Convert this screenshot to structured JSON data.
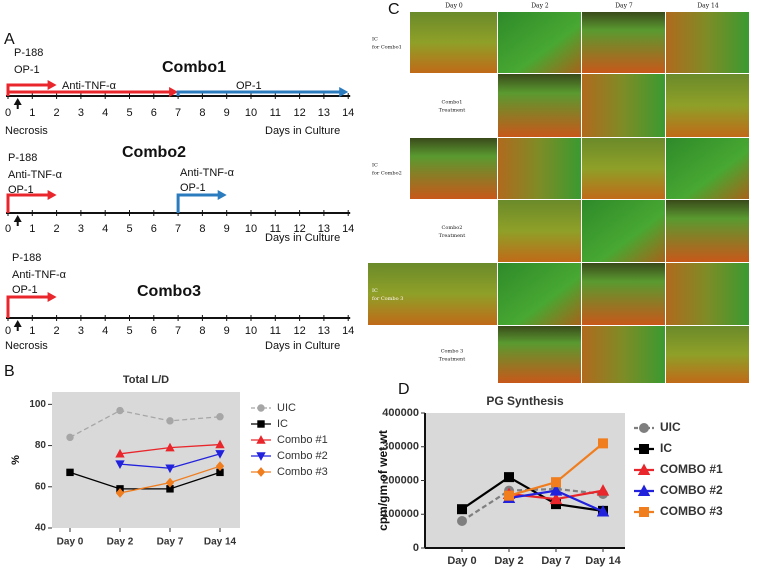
{
  "panel_a": {
    "label": "A",
    "timelines": [
      {
        "title": "Combo1",
        "annotations": [
          "P-188",
          "OP-1",
          "Anti-TNF-α",
          "OP-1"
        ],
        "day_ticks": [
          0,
          1,
          2,
          3,
          4,
          5,
          6,
          7,
          8,
          9,
          10,
          11,
          12,
          13,
          14
        ],
        "footer_left": "Necrosis",
        "footer_right": "Days in Culture",
        "arrows": [
          {
            "from": 0,
            "to": 2,
            "color": "#e8262b"
          },
          {
            "from": 0,
            "to": 7,
            "color": "#e8262b"
          },
          {
            "from": 7,
            "to": 14,
            "color": "#2b7bbf"
          }
        ]
      },
      {
        "title": "Combo2",
        "annotations": [
          "P-188",
          "Anti-TNF-α",
          "OP-1",
          "Anti-TNF-α",
          "OP-1"
        ],
        "day_ticks": [
          0,
          1,
          2,
          3,
          4,
          5,
          6,
          7,
          8,
          9,
          10,
          11,
          12,
          13,
          14
        ],
        "footer_right": "Days in Culture",
        "arrows": [
          {
            "from": 0,
            "to": 2,
            "color": "#e8262b"
          },
          {
            "from": 7,
            "to": 9,
            "color": "#2b7bbf"
          }
        ]
      },
      {
        "title": "Combo3",
        "annotations": [
          "P-188",
          "Anti-TNF-α",
          "OP-1"
        ],
        "day_ticks": [
          0,
          1,
          2,
          3,
          4,
          5,
          6,
          7,
          8,
          9,
          10,
          11,
          12,
          13,
          14
        ],
        "footer_left": "Necrosis",
        "footer_right": "Days in Culture",
        "arrows": [
          {
            "from": 0,
            "to": 2,
            "color": "#e8262b"
          }
        ]
      }
    ]
  },
  "panel_c": {
    "label": "C",
    "columns": [
      "Day 0",
      "Day 2",
      "Day 7",
      "Day 14"
    ],
    "rows": [
      [
        "IC",
        "for Combo1"
      ],
      [
        "Combo1",
        "Treatment"
      ],
      [
        "IC",
        "for Combo2"
      ],
      [
        "Combo2",
        "Treatment"
      ],
      [
        "IC",
        "for Combo 3"
      ],
      [
        "Combo 3",
        "Treatment"
      ]
    ]
  },
  "chart_data": [
    {
      "type": "line",
      "panel": "B",
      "title": "Total  L/D",
      "ylabel": "%",
      "categories": [
        "Day 0",
        "Day 2",
        "Day 7",
        "Day 14"
      ],
      "series": [
        {
          "name": "UIC",
          "color": "#a6a6a6",
          "marker": "circle",
          "dashed": true,
          "values": [
            84,
            97,
            92,
            94
          ]
        },
        {
          "name": "IC",
          "color": "#000000",
          "marker": "square",
          "dashed": false,
          "values": [
            67,
            59,
            59,
            67
          ]
        },
        {
          "name": "Combo #1",
          "color": "#e8262b",
          "marker": "triangle-up",
          "dashed": false,
          "values": [
            null,
            76,
            79,
            80.5
          ]
        },
        {
          "name": "Combo #2",
          "color": "#2222dd",
          "marker": "triangle-down",
          "dashed": false,
          "values": [
            null,
            71,
            69,
            76
          ]
        },
        {
          "name": "Combo #3",
          "color": "#f07d1e",
          "marker": "diamond",
          "dashed": false,
          "values": [
            null,
            57,
            62,
            70
          ]
        }
      ],
      "ylim": [
        40,
        106
      ],
      "yticks": [
        40,
        60,
        80,
        100
      ],
      "grid": false
    },
    {
      "type": "line",
      "panel": "D",
      "title": "PG Synthesis",
      "ylabel": "cpm/gm of wet wt",
      "categories": [
        "Day 0",
        "Day 2",
        "Day 7",
        "Day 14"
      ],
      "series": [
        {
          "name": "UIC",
          "color": "#7f7f7f",
          "marker": "circle",
          "dashed": true,
          "values": [
            80000,
            170000,
            175000,
            160000
          ]
        },
        {
          "name": "IC",
          "color": "#000000",
          "marker": "square",
          "dashed": false,
          "values": [
            115000,
            210000,
            130000,
            110000
          ]
        },
        {
          "name": "COMBO #1",
          "color": "#e8262b",
          "marker": "triangle-up",
          "dashed": false,
          "values": [
            null,
            160000,
            145000,
            170000
          ]
        },
        {
          "name": "COMBO #2",
          "color": "#2222dd",
          "marker": "triangle-up",
          "dashed": false,
          "values": [
            null,
            148000,
            170000,
            108000
          ]
        },
        {
          "name": "COMBO #3",
          "color": "#f07d1e",
          "marker": "square",
          "dashed": false,
          "values": [
            null,
            155000,
            195000,
            310000
          ]
        }
      ],
      "ylim": [
        0,
        400000
      ],
      "yticks": [
        0,
        100000,
        200000,
        300000,
        400000
      ],
      "grid": false
    }
  ]
}
